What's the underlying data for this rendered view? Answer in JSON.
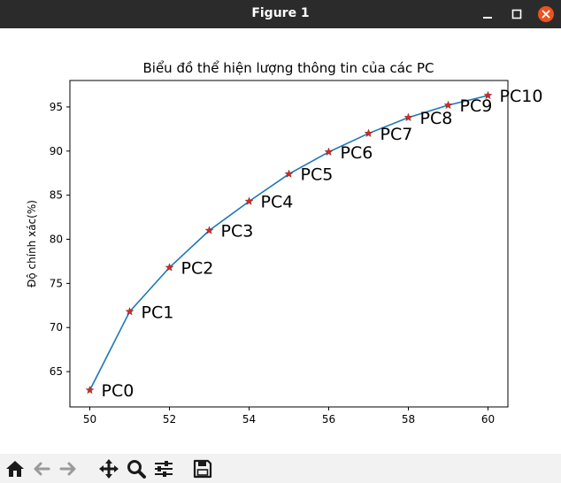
{
  "window": {
    "title": "Figure 1"
  },
  "toolbar": {
    "icons": [
      "home-icon",
      "back-icon",
      "forward-icon",
      "pan-icon",
      "zoom-icon",
      "configure-subplots-icon",
      "save-icon"
    ]
  },
  "colors": {
    "line": "#1f77b4",
    "marker": "#d62728",
    "titlebar": "#2b2b2b",
    "close": "#e95420"
  },
  "chart_data": {
    "type": "line",
    "title": "Biểu đồ thể hiện lượng thông tin của các PC",
    "xlabel": "",
    "ylabel": "Độ chính xác(%)",
    "xlim": [
      49.5,
      60.5
    ],
    "ylim": [
      61,
      98
    ],
    "x_ticks": [
      "50",
      "52",
      "54",
      "56",
      "58",
      "60"
    ],
    "y_ticks": [
      "65",
      "70",
      "75",
      "80",
      "85",
      "90",
      "95"
    ],
    "grid": false,
    "marker": "star",
    "series": [
      {
        "x": [
          50,
          51,
          52,
          53,
          54,
          55,
          56,
          57,
          58,
          59,
          60
        ],
        "y": [
          62.9,
          71.8,
          76.8,
          81.0,
          84.3,
          87.4,
          89.9,
          92.0,
          93.8,
          95.2,
          96.3
        ],
        "labels": [
          "PC0",
          "PC1",
          "PC2",
          "PC3",
          "PC4",
          "PC5",
          "PC6",
          "PC7",
          "PC8",
          "PC9",
          "PC10"
        ]
      }
    ]
  }
}
